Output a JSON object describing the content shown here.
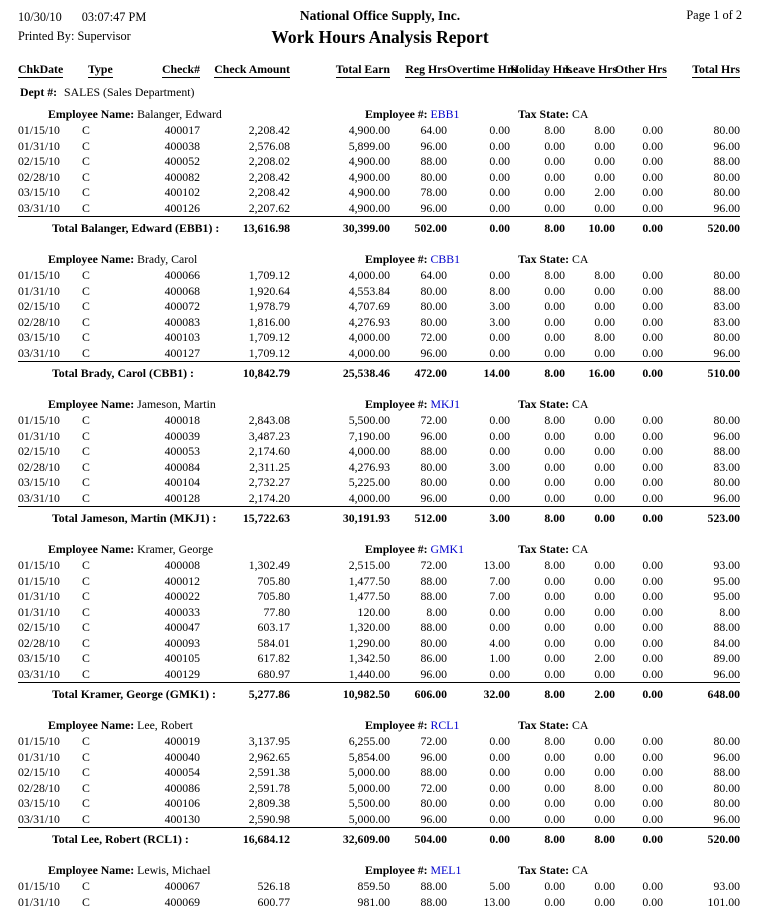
{
  "header": {
    "date": "10/30/10",
    "time": "03:07:47 PM",
    "printed_by_label": "Printed By:",
    "printed_by": "Supervisor",
    "company": "National Office Supply, Inc.",
    "title": "Work Hours Analysis Report",
    "page": "Page 1 of 2"
  },
  "columns": [
    {
      "label": "ChkDate",
      "align": "left"
    },
    {
      "label": "Type",
      "align": "left"
    },
    {
      "label": "Check#",
      "align": "right"
    },
    {
      "label": "Check Amount",
      "align": "right"
    },
    {
      "label": "Total Earn",
      "align": "right"
    },
    {
      "label": "Reg Hrs",
      "align": "right"
    },
    {
      "label": "Overtime Hrs",
      "align": "right"
    },
    {
      "label": "Holiday Hrs",
      "align": "right"
    },
    {
      "label": "Leave Hrs",
      "align": "right"
    },
    {
      "label": "Other Hrs",
      "align": "right"
    },
    {
      "label": "Total Hrs",
      "align": "right"
    }
  ],
  "dept": {
    "label": "Dept #:",
    "value": "SALES (Sales Department)"
  },
  "labels": {
    "employee_name": "Employee Name:",
    "employee_number": "Employee #:",
    "tax_state": "Tax State:"
  },
  "colors": {
    "employee_number_link": "#0000CC"
  },
  "employees": [
    {
      "name": "Balanger, Edward",
      "number": "EBB1",
      "tax_state": "CA",
      "rows": [
        [
          "01/15/10",
          "C",
          "400017",
          "2,208.42",
          "4,900.00",
          "64.00",
          "0.00",
          "8.00",
          "8.00",
          "0.00",
          "80.00"
        ],
        [
          "01/31/10",
          "C",
          "400038",
          "2,576.08",
          "5,899.00",
          "96.00",
          "0.00",
          "0.00",
          "0.00",
          "0.00",
          "96.00"
        ],
        [
          "02/15/10",
          "C",
          "400052",
          "2,208.02",
          "4,900.00",
          "88.00",
          "0.00",
          "0.00",
          "0.00",
          "0.00",
          "88.00"
        ],
        [
          "02/28/10",
          "C",
          "400082",
          "2,208.42",
          "4,900.00",
          "80.00",
          "0.00",
          "0.00",
          "0.00",
          "0.00",
          "80.00"
        ],
        [
          "03/15/10",
          "C",
          "400102",
          "2,208.42",
          "4,900.00",
          "78.00",
          "0.00",
          "0.00",
          "2.00",
          "0.00",
          "80.00"
        ],
        [
          "03/31/10",
          "C",
          "400126",
          "2,207.62",
          "4,900.00",
          "96.00",
          "0.00",
          "0.00",
          "0.00",
          "0.00",
          "96.00"
        ]
      ],
      "total_label": "Total Balanger, Edward (EBB1) :",
      "totals": [
        "13,616.98",
        "30,399.00",
        "502.00",
        "0.00",
        "8.00",
        "10.00",
        "0.00",
        "520.00"
      ]
    },
    {
      "name": "Brady, Carol",
      "number": "CBB1",
      "tax_state": "CA",
      "rows": [
        [
          "01/15/10",
          "C",
          "400066",
          "1,709.12",
          "4,000.00",
          "64.00",
          "0.00",
          "8.00",
          "8.00",
          "0.00",
          "80.00"
        ],
        [
          "01/31/10",
          "C",
          "400068",
          "1,920.64",
          "4,553.84",
          "80.00",
          "8.00",
          "0.00",
          "0.00",
          "0.00",
          "88.00"
        ],
        [
          "02/15/10",
          "C",
          "400072",
          "1,978.79",
          "4,707.69",
          "80.00",
          "3.00",
          "0.00",
          "0.00",
          "0.00",
          "83.00"
        ],
        [
          "02/28/10",
          "C",
          "400083",
          "1,816.00",
          "4,276.93",
          "80.00",
          "3.00",
          "0.00",
          "0.00",
          "0.00",
          "83.00"
        ],
        [
          "03/15/10",
          "C",
          "400103",
          "1,709.12",
          "4,000.00",
          "72.00",
          "0.00",
          "0.00",
          "8.00",
          "0.00",
          "80.00"
        ],
        [
          "03/31/10",
          "C",
          "400127",
          "1,709.12",
          "4,000.00",
          "96.00",
          "0.00",
          "0.00",
          "0.00",
          "0.00",
          "96.00"
        ]
      ],
      "total_label": "Total Brady, Carol (CBB1) :",
      "totals": [
        "10,842.79",
        "25,538.46",
        "472.00",
        "14.00",
        "8.00",
        "16.00",
        "0.00",
        "510.00"
      ]
    },
    {
      "name": "Jameson, Martin",
      "number": "MKJ1",
      "tax_state": "CA",
      "rows": [
        [
          "01/15/10",
          "C",
          "400018",
          "2,843.08",
          "5,500.00",
          "72.00",
          "0.00",
          "8.00",
          "0.00",
          "0.00",
          "80.00"
        ],
        [
          "01/31/10",
          "C",
          "400039",
          "3,487.23",
          "7,190.00",
          "96.00",
          "0.00",
          "0.00",
          "0.00",
          "0.00",
          "96.00"
        ],
        [
          "02/15/10",
          "C",
          "400053",
          "2,174.60",
          "4,000.00",
          "88.00",
          "0.00",
          "0.00",
          "0.00",
          "0.00",
          "88.00"
        ],
        [
          "02/28/10",
          "C",
          "400084",
          "2,311.25",
          "4,276.93",
          "80.00",
          "3.00",
          "0.00",
          "0.00",
          "0.00",
          "83.00"
        ],
        [
          "03/15/10",
          "C",
          "400104",
          "2,732.27",
          "5,225.00",
          "80.00",
          "0.00",
          "0.00",
          "0.00",
          "0.00",
          "80.00"
        ],
        [
          "03/31/10",
          "C",
          "400128",
          "2,174.20",
          "4,000.00",
          "96.00",
          "0.00",
          "0.00",
          "0.00",
          "0.00",
          "96.00"
        ]
      ],
      "total_label": "Total Jameson, Martin (MKJ1) :",
      "totals": [
        "15,722.63",
        "30,191.93",
        "512.00",
        "3.00",
        "8.00",
        "0.00",
        "0.00",
        "523.00"
      ]
    },
    {
      "name": "Kramer, George",
      "number": "GMK1",
      "tax_state": "CA",
      "rows": [
        [
          "01/15/10",
          "C",
          "400008",
          "1,302.49",
          "2,515.00",
          "72.00",
          "13.00",
          "8.00",
          "0.00",
          "0.00",
          "93.00"
        ],
        [
          "01/15/10",
          "C",
          "400012",
          "705.80",
          "1,477.50",
          "88.00",
          "7.00",
          "0.00",
          "0.00",
          "0.00",
          "95.00"
        ],
        [
          "01/31/10",
          "C",
          "400022",
          "705.80",
          "1,477.50",
          "88.00",
          "7.00",
          "0.00",
          "0.00",
          "0.00",
          "95.00"
        ],
        [
          "01/31/10",
          "C",
          "400033",
          "77.80",
          "120.00",
          "8.00",
          "0.00",
          "0.00",
          "0.00",
          "0.00",
          "8.00"
        ],
        [
          "02/15/10",
          "C",
          "400047",
          "603.17",
          "1,320.00",
          "88.00",
          "0.00",
          "0.00",
          "0.00",
          "0.00",
          "88.00"
        ],
        [
          "02/28/10",
          "C",
          "400093",
          "584.01",
          "1,290.00",
          "80.00",
          "4.00",
          "0.00",
          "0.00",
          "0.00",
          "84.00"
        ],
        [
          "03/15/10",
          "C",
          "400105",
          "617.82",
          "1,342.50",
          "86.00",
          "1.00",
          "0.00",
          "2.00",
          "0.00",
          "89.00"
        ],
        [
          "03/31/10",
          "C",
          "400129",
          "680.97",
          "1,440.00",
          "96.00",
          "0.00",
          "0.00",
          "0.00",
          "0.00",
          "96.00"
        ]
      ],
      "total_label": "Total Kramer, George (GMK1) :",
      "totals": [
        "5,277.86",
        "10,982.50",
        "606.00",
        "32.00",
        "8.00",
        "2.00",
        "0.00",
        "648.00"
      ]
    },
    {
      "name": "Lee, Robert",
      "number": "RCL1",
      "tax_state": "CA",
      "rows": [
        [
          "01/15/10",
          "C",
          "400019",
          "3,137.95",
          "6,255.00",
          "72.00",
          "0.00",
          "8.00",
          "0.00",
          "0.00",
          "80.00"
        ],
        [
          "01/31/10",
          "C",
          "400040",
          "2,962.65",
          "5,854.00",
          "96.00",
          "0.00",
          "0.00",
          "0.00",
          "0.00",
          "96.00"
        ],
        [
          "02/15/10",
          "C",
          "400054",
          "2,591.38",
          "5,000.00",
          "88.00",
          "0.00",
          "0.00",
          "0.00",
          "0.00",
          "88.00"
        ],
        [
          "02/28/10",
          "C",
          "400086",
          "2,591.78",
          "5,000.00",
          "72.00",
          "0.00",
          "0.00",
          "8.00",
          "0.00",
          "80.00"
        ],
        [
          "03/15/10",
          "C",
          "400106",
          "2,809.38",
          "5,500.00",
          "80.00",
          "0.00",
          "0.00",
          "0.00",
          "0.00",
          "80.00"
        ],
        [
          "03/31/10",
          "C",
          "400130",
          "2,590.98",
          "5,000.00",
          "96.00",
          "0.00",
          "0.00",
          "0.00",
          "0.00",
          "96.00"
        ]
      ],
      "total_label": "Total Lee, Robert (RCL1) :",
      "totals": [
        "16,684.12",
        "32,609.00",
        "504.00",
        "0.00",
        "8.00",
        "8.00",
        "0.00",
        "520.00"
      ]
    },
    {
      "name": "Lewis, Michael",
      "number": "MEL1",
      "tax_state": "CA",
      "rows": [
        [
          "01/15/10",
          "C",
          "400067",
          "526.18",
          "859.50",
          "88.00",
          "5.00",
          "0.00",
          "0.00",
          "0.00",
          "93.00"
        ],
        [
          "01/31/10",
          "C",
          "400069",
          "600.77",
          "981.00",
          "88.00",
          "13.00",
          "0.00",
          "0.00",
          "0.00",
          "101.00"
        ]
      ]
    }
  ]
}
